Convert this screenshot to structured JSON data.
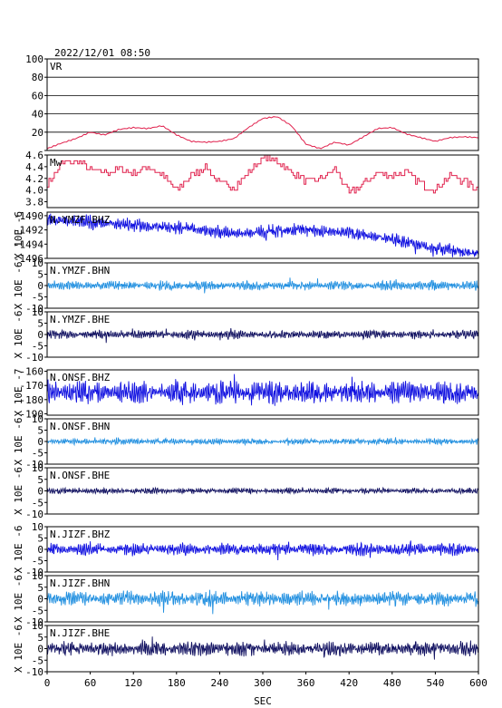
{
  "header": {
    "datetime": "2022/12/01  08:50"
  },
  "chart_data": {
    "type": "line",
    "title": "2022/12/01  08:50",
    "xlabel": "SEC",
    "xlim": [
      0,
      600
    ],
    "xticks": [
      0,
      60,
      120,
      180,
      240,
      300,
      360,
      420,
      480,
      540,
      600
    ],
    "xtick_labels": [
      "0",
      "60",
      "120",
      "180",
      "240",
      "300",
      "360",
      "420",
      "480",
      "540",
      "600"
    ],
    "panels": [
      {
        "label": "VR",
        "ylim": [
          0,
          100
        ],
        "yticks": [
          0,
          20,
          40,
          60,
          80,
          100
        ],
        "ytick_labels": [
          "",
          "20",
          "40",
          "60",
          "80",
          "100"
        ],
        "grid": true,
        "color": "#e0204c",
        "kind": "vr",
        "x": [
          0,
          20,
          40,
          60,
          80,
          100,
          120,
          140,
          160,
          180,
          200,
          220,
          240,
          260,
          280,
          300,
          320,
          340,
          360,
          380,
          400,
          420,
          440,
          460,
          480,
          500,
          520,
          540,
          560,
          580,
          600
        ],
        "y": [
          2,
          8,
          13,
          20,
          17,
          23,
          25,
          24,
          27,
          17,
          10,
          9,
          10,
          13,
          25,
          35,
          37,
          27,
          7,
          2,
          9,
          6,
          15,
          24,
          25,
          18,
          14,
          10,
          14,
          15,
          14
        ]
      },
      {
        "label": "Mw",
        "ylim": [
          3.7,
          4.6
        ],
        "yticks": [
          3.8,
          4.0,
          4.2,
          4.4,
          4.6
        ],
        "ytick_labels": [
          "3.8",
          "4.0",
          "4.2",
          "4.4",
          "4.6"
        ],
        "grid": false,
        "color": "#e0204c",
        "kind": "mw",
        "x": [
          0,
          20,
          40,
          60,
          80,
          100,
          120,
          140,
          160,
          180,
          200,
          220,
          240,
          260,
          280,
          300,
          320,
          340,
          360,
          380,
          400,
          420,
          440,
          460,
          480,
          500,
          520,
          540,
          560,
          580,
          600
        ],
        "y": [
          4.1,
          4.45,
          4.5,
          4.35,
          4.3,
          4.35,
          4.3,
          4.4,
          4.25,
          4.0,
          4.25,
          4.4,
          4.1,
          4.05,
          4.3,
          4.55,
          4.5,
          4.3,
          4.15,
          4.2,
          4.35,
          3.95,
          4.1,
          4.3,
          4.25,
          4.3,
          4.1,
          4.0,
          4.25,
          4.15,
          4.0
        ]
      },
      {
        "label": "N.YMZF.BHZ",
        "ylim": [
          -1496,
          -1489.5
        ],
        "yticks": [
          -1490,
          -1492,
          -1494,
          -1496
        ],
        "ytick_labels": [
          "-1490",
          "-1492",
          "-1494",
          "-1496"
        ],
        "ylabel": "X 10E -6",
        "grid": false,
        "color": "#1010e0",
        "kind": "trend",
        "x": [
          0,
          100,
          200,
          260,
          300,
          360,
          420,
          480,
          540,
          600
        ],
        "y": [
          -1490.5,
          -1491.2,
          -1491.8,
          -1492.6,
          -1492.2,
          -1492.0,
          -1492.4,
          -1493.3,
          -1494.6,
          -1495.4
        ],
        "amplitude": 0.9
      },
      {
        "label": "N.YMZF.BHN",
        "ylim": [
          -10,
          10
        ],
        "yticks": [
          -10,
          -5,
          0,
          5,
          10
        ],
        "ytick_labels": [
          "-10",
          "-5",
          "0",
          "5",
          "10"
        ],
        "ylabel": "X 10E -6",
        "grid": false,
        "color": "#2290e0",
        "kind": "noise",
        "amplitude": 2.0
      },
      {
        "label": "N.YMZF.BHE",
        "ylim": [
          -10,
          10
        ],
        "yticks": [
          -10,
          -5,
          0,
          5,
          10
        ],
        "ytick_labels": [
          "-10",
          "-5",
          "0",
          "5",
          "10"
        ],
        "ylabel": "X 10E -6",
        "grid": false,
        "color": "#101060",
        "kind": "noise",
        "amplitude": 1.8
      },
      {
        "label": "N.ONSF.BHZ",
        "ylim": [
          -191,
          -159
        ],
        "yticks": [
          -160,
          -170,
          -180,
          -190
        ],
        "ytick_labels": [
          "-160",
          "-170",
          "-180",
          "-190"
        ],
        "ylabel": "X 10E -7",
        "grid": false,
        "color": "#1010e0",
        "kind": "trend",
        "x": [
          0,
          600
        ],
        "y": [
          -175,
          -175
        ],
        "amplitude": 8
      },
      {
        "label": "N.ONSF.BHN",
        "ylim": [
          -10,
          10
        ],
        "yticks": [
          -10,
          -5,
          0,
          5,
          10
        ],
        "ytick_labels": [
          "-10",
          "-5",
          "0",
          "5",
          "10"
        ],
        "ylabel": "X 10E -6",
        "grid": false,
        "color": "#2290e0",
        "kind": "noise",
        "amplitude": 1.3
      },
      {
        "label": "N.ONSF.BHE",
        "ylim": [
          -10,
          10
        ],
        "yticks": [
          -10,
          -5,
          0,
          5,
          10
        ],
        "ytick_labels": [
          "-10",
          "-5",
          "0",
          "5",
          "10"
        ],
        "ylabel": "X 10E -6",
        "grid": false,
        "color": "#101060",
        "kind": "noise",
        "amplitude": 1.2
      },
      {
        "label": "N.JIZF.BHZ",
        "ylim": [
          -10,
          10
        ],
        "yticks": [
          -10,
          -5,
          0,
          5,
          10
        ],
        "ytick_labels": [
          "-10",
          "-5",
          "0",
          "5",
          "10"
        ],
        "ylabel": "X 10E -6",
        "grid": false,
        "color": "#1010e0",
        "kind": "noise",
        "amplitude": 2.6
      },
      {
        "label": "N.JIZF.BHN",
        "ylim": [
          -10,
          10
        ],
        "yticks": [
          -10,
          -5,
          0,
          5,
          10
        ],
        "ytick_labels": [
          "-10",
          "-5",
          "0",
          "5",
          "10"
        ],
        "ylabel": "X 10E -6",
        "grid": false,
        "color": "#2290e0",
        "kind": "noise",
        "amplitude": 3.2
      },
      {
        "label": "N.JIZF.BHE",
        "ylim": [
          -10,
          10
        ],
        "yticks": [
          -10,
          -5,
          0,
          5,
          10
        ],
        "ytick_labels": [
          "-10",
          "-5",
          "0",
          "5",
          "10"
        ],
        "ylabel": "X 10E -6",
        "grid": false,
        "color": "#101060",
        "kind": "noise",
        "amplitude": 3.0
      }
    ]
  }
}
